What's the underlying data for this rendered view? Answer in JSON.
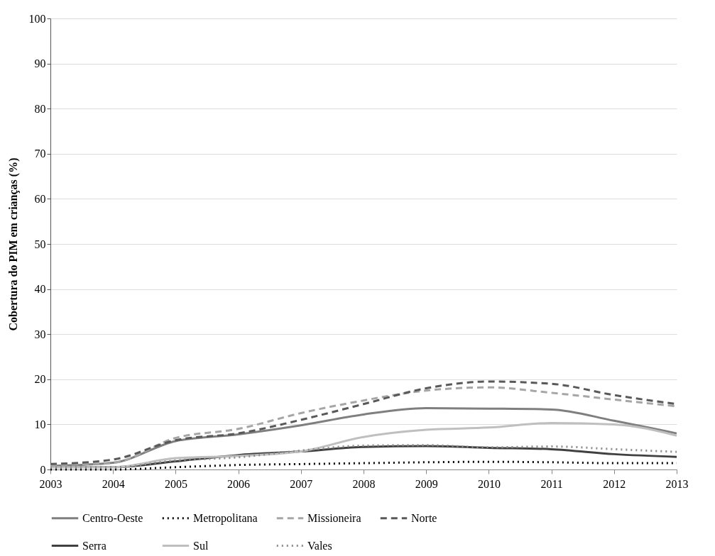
{
  "chart_data": {
    "type": "line",
    "ylabel": "Cobertura do PIM em crianças  (%)",
    "x": [
      2003,
      2004,
      2005,
      2006,
      2007,
      2008,
      2009,
      2010,
      2011,
      2012,
      2013
    ],
    "xlim": [
      2003,
      2013
    ],
    "xticks": [
      2003,
      2004,
      2005,
      2006,
      2007,
      2008,
      2009,
      2010,
      2011,
      2012,
      2013
    ],
    "ylim": [
      0,
      100
    ],
    "yticks": [
      0,
      10,
      20,
      30,
      40,
      50,
      60,
      70,
      80,
      90,
      100
    ],
    "grid": "y",
    "legend": "bottom",
    "marker": "none",
    "series": [
      {
        "name": "Centro-Oeste",
        "color": "#7f7f7f",
        "line_style": "solid",
        "values": [
          0.8,
          1.5,
          6.3,
          7.8,
          9.8,
          12.2,
          13.6,
          13.5,
          13.3,
          10.8,
          8.0
        ]
      },
      {
        "name": "Metropolitana",
        "color": "#000000",
        "line_style": "dotted",
        "values": [
          0.0,
          0.0,
          0.5,
          1.0,
          1.2,
          1.4,
          1.6,
          1.7,
          1.6,
          1.4,
          1.4
        ]
      },
      {
        "name": "Missioneira",
        "color": "#a6a6a6",
        "line_style": "dashed",
        "values": [
          1.0,
          1.5,
          7.0,
          9.0,
          12.5,
          15.3,
          17.5,
          18.2,
          17.0,
          15.5,
          14.0
        ]
      },
      {
        "name": "Norte",
        "color": "#595959",
        "line_style": "dashed",
        "values": [
          1.2,
          2.2,
          6.5,
          8.0,
          11.0,
          14.5,
          18.0,
          19.5,
          19.0,
          16.5,
          14.5
        ]
      },
      {
        "name": "Serra",
        "color": "#404040",
        "line_style": "solid",
        "values": [
          0.5,
          0.5,
          1.8,
          3.2,
          4.0,
          5.0,
          5.2,
          4.8,
          4.5,
          3.4,
          2.8
        ]
      },
      {
        "name": "Sul",
        "color": "#bfbfbf",
        "line_style": "solid",
        "values": [
          0.5,
          0.5,
          2.5,
          3.0,
          4.0,
          7.2,
          8.8,
          9.3,
          10.3,
          10.0,
          7.5
        ]
      },
      {
        "name": "Vales",
        "color": "#8c8c8c",
        "line_style": "dotted",
        "values": [
          0.5,
          0.5,
          2.0,
          2.7,
          4.2,
          5.3,
          5.4,
          4.9,
          5.1,
          4.5,
          3.9
        ]
      }
    ]
  }
}
